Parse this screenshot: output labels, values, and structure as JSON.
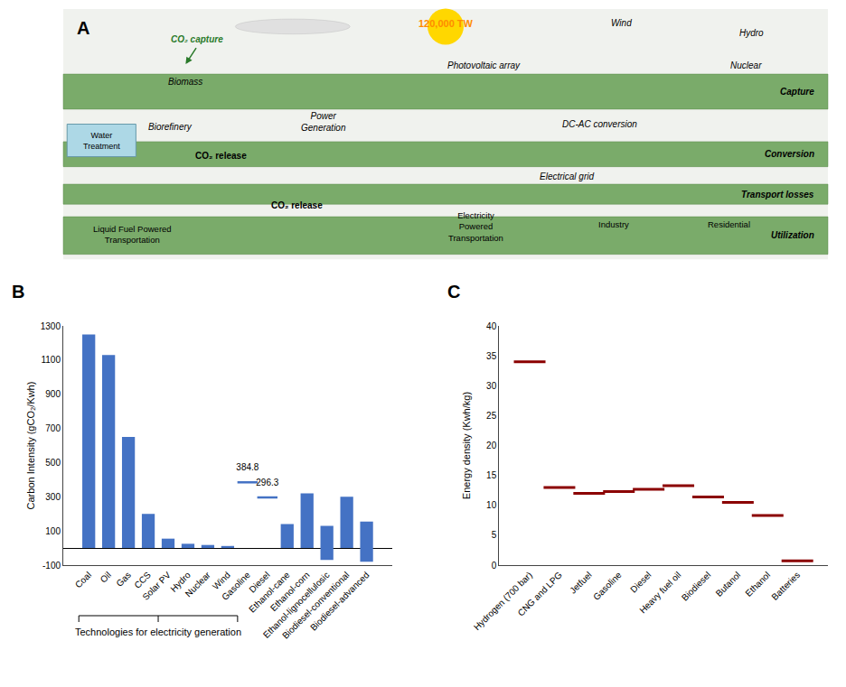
{
  "chart_data": [
    {
      "type": "diagram",
      "title": "A",
      "annotations": [
        "120,000 TW",
        "Wind",
        "Hydro",
        "Photovoltaic array",
        "Nuclear",
        "CO₂ capture",
        "Biomass",
        "Biorefinery",
        "Power\nGeneration",
        "DC-AC conversion",
        "Water\nTreatment",
        "CO₂ release",
        "CO₂ release",
        "Electrical grid",
        "Liquid Fuel Powered\nTransportation",
        "Electricity\nPowered\nTransportation",
        "Industry",
        "Residential",
        "Capture",
        "Conversion",
        "Transport losses",
        "Utilization"
      ]
    },
    {
      "type": "bar",
      "title": "B",
      "categories": [
        "Coal",
        "Oil",
        "Gas",
        "CCS",
        "Solar PV",
        "Hydro",
        "Nuclear",
        "Wind",
        "Gasoline",
        "Diesel",
        "Ethanol-cane",
        "Ethanol-corn",
        "Ethanol-lignocellulosic",
        "Biodiesel-conventional",
        "Biodiesel-advanced"
      ],
      "series": [
        {
          "type": "bar",
          "color": "#4472C4",
          "values": [
            1250,
            1130,
            650,
            200,
            55,
            25,
            18,
            12,
            null,
            null,
            140,
            320,
            200,
            300,
            235
          ],
          "base": [
            0,
            0,
            0,
            0,
            0,
            0,
            0,
            0,
            null,
            null,
            0,
            0,
            -70,
            0,
            -80
          ]
        },
        {
          "type": "scatter",
          "marker": "line",
          "color": "#4472C4",
          "data_labels": true,
          "values": [
            null,
            null,
            null,
            null,
            null,
            null,
            null,
            null,
            384.8,
            296.3,
            null,
            null,
            null,
            null,
            null
          ]
        }
      ],
      "ylabel": "Carbon Intensity (gCO₂/Kwh)",
      "ylim": [
        -100,
        1300
      ],
      "yticks": [
        -100,
        100,
        300,
        500,
        700,
        900,
        1100,
        1300
      ],
      "grid": false,
      "annotations": [
        {
          "text": "Technologies for electricity generation",
          "from": "Coal",
          "to": "Wind"
        }
      ]
    },
    {
      "type": "scatter",
      "marker": "line",
      "title": "C",
      "categories": [
        "Hydrogen (700 bar)",
        "CNG and LPG",
        "Jetfuel",
        "Gasoline",
        "Diesel",
        "Heavy fuel oil",
        "Biodiesel",
        "Butanol",
        "Ethanol",
        "Batteries"
      ],
      "values": [
        34.0,
        13.0,
        12.0,
        12.3,
        12.7,
        13.3,
        11.4,
        10.5,
        8.3,
        0.7
      ],
      "color": "#8B0000",
      "ylabel": "Energy density (Kwh/kg)",
      "ylim": [
        0,
        40
      ],
      "yticks": [
        0,
        5,
        10,
        15,
        20,
        25,
        30,
        35,
        40
      ],
      "grid": false
    }
  ]
}
